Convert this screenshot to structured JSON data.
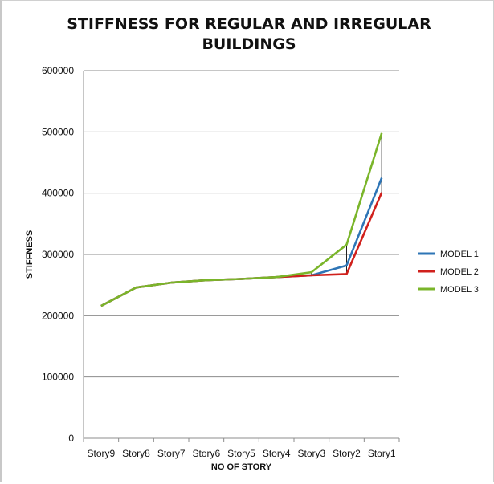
{
  "chart_data": {
    "type": "line",
    "title": "STIFFNESS FOR REGULAR AND IRREGULAR BUILDINGS",
    "xlabel": "NO OF STORY",
    "ylabel": "STIFFNESS",
    "categories": [
      "Story9",
      "Story8",
      "Story7",
      "Story6",
      "Story5",
      "Story4",
      "Story3",
      "Story2",
      "Story1"
    ],
    "ylim": [
      0,
      600000
    ],
    "yticks": [
      "0",
      "100000",
      "200000",
      "300000",
      "400000",
      "500000",
      "600000"
    ],
    "grid": true,
    "legend_position": "right",
    "series": [
      {
        "name": "MODEL 1",
        "color": "#2E75B6",
        "values": [
          216000,
          246000,
          254000,
          258000,
          260000,
          263000,
          266000,
          282000,
          425000
        ]
      },
      {
        "name": "MODEL 2",
        "color": "#D0201C",
        "values": [
          216000,
          246000,
          254000,
          258000,
          260000,
          263000,
          266000,
          268000,
          401000
        ]
      },
      {
        "name": "MODEL 3",
        "color": "#7AB52A",
        "values": [
          216000,
          246000,
          254000,
          258000,
          260000,
          263000,
          271000,
          316000,
          498000
        ]
      }
    ]
  }
}
